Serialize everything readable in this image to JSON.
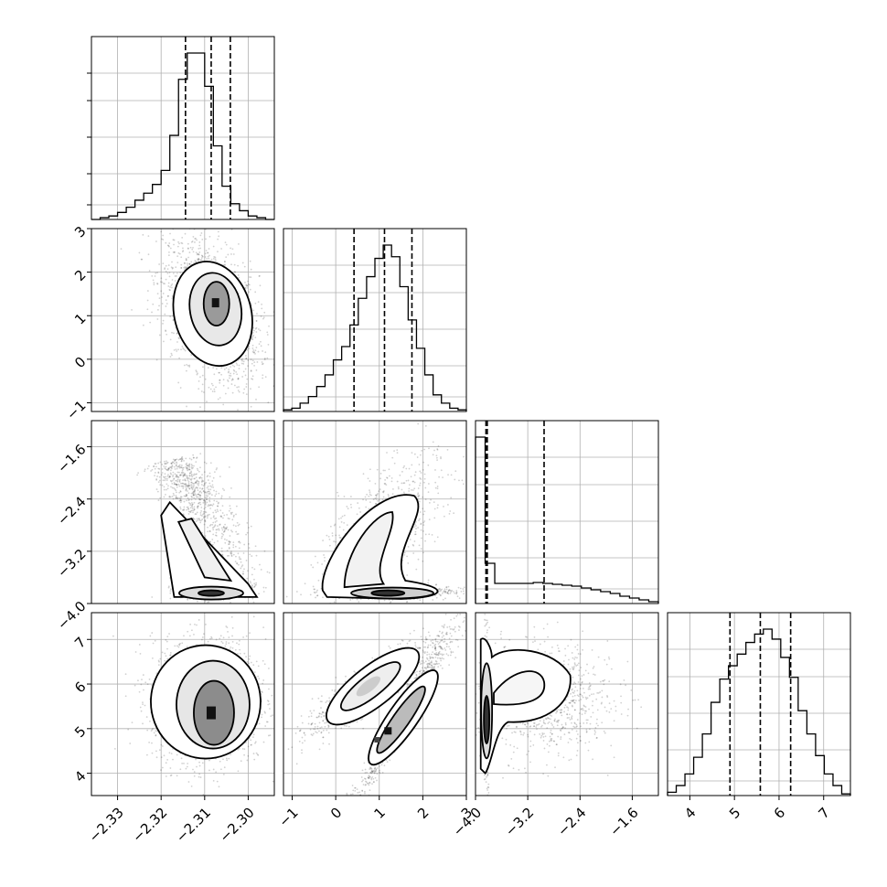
{
  "chart_data": {
    "type": "corner",
    "parameters": [
      {
        "xlim": [
          -2.336,
          -2.294
        ],
        "ticks": [
          -2.33,
          -2.32,
          -2.31,
          -2.3
        ],
        "tick_labels": [
          "−2.33",
          "−2.32",
          "−2.31",
          "−2.30"
        ]
      },
      {
        "xlim": [
          -1.2,
          3.0
        ],
        "ticks": [
          -1,
          0,
          1,
          2,
          3
        ],
        "tick_labels": [
          "−1",
          "0",
          "1",
          "2",
          "3"
        ]
      },
      {
        "xlim": [
          -4.0,
          -1.2
        ],
        "ticks": [
          -4.0,
          -3.2,
          -2.4,
          -1.6
        ],
        "tick_labels": [
          "−4.0",
          "−3.2",
          "−2.4",
          "−1.6"
        ]
      },
      {
        "xlim": [
          3.5,
          7.6
        ],
        "ticks": [
          4,
          5,
          6,
          7
        ],
        "tick_labels": [
          "4",
          "5",
          "6",
          "7"
        ]
      }
    ],
    "marginal_quantiles": [
      [
        -2.3144,
        -2.3085,
        -2.3041
      ],
      [
        0.42,
        1.12,
        1.75
      ],
      [
        -3.84,
        -3.82,
        -2.95
      ],
      [
        4.9,
        5.58,
        6.26
      ]
    ],
    "histograms": [
      {
        "values": [
          0,
          1,
          2,
          4,
          7,
          11,
          15,
          20,
          28,
          48,
          80,
          95,
          95,
          76,
          42,
          19,
          9,
          5,
          2,
          1,
          0
        ]
      },
      {
        "values": [
          1,
          2,
          5,
          9,
          15,
          22,
          31,
          39,
          52,
          68,
          81,
          92,
          100,
          93,
          75,
          55,
          38,
          22,
          10,
          5,
          2,
          1
        ]
      },
      {
        "values": [
          91,
          22,
          11,
          11,
          11,
          11,
          11.5,
          11,
          10.5,
          10,
          9.5,
          8.5,
          7.5,
          6.5,
          5.5,
          4,
          3,
          2,
          1
        ]
      },
      {
        "values": [
          2,
          6,
          13,
          23,
          37,
          56,
          70,
          78,
          85,
          92,
          97,
          100,
          94,
          83,
          71,
          51,
          37,
          24,
          13,
          6,
          1
        ]
      }
    ],
    "grid": true,
    "quantile_lines": "dashed"
  }
}
